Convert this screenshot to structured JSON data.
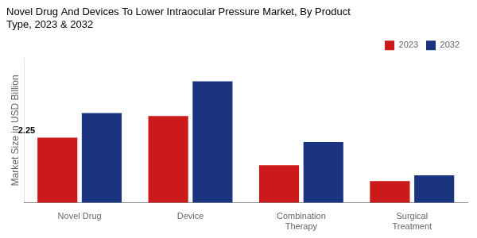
{
  "chart_data": {
    "type": "bar",
    "title": "Novel Drug And Devices To Lower Intraocular Pressure Market, By Product\nType, 2023 & 2032",
    "ylabel": "Market Size in USD Billion",
    "categories": [
      "Novel Drug",
      "Device",
      "Combination\nTherapy",
      "Surgical\nTreatment"
    ],
    "series": [
      {
        "name": "2023",
        "color": "#cc1a1a",
        "values": [
          2.25,
          3.0,
          1.3,
          0.75
        ]
      },
      {
        "name": "2032",
        "color": "#1a3480",
        "values": [
          3.1,
          4.2,
          2.1,
          0.95
        ]
      }
    ],
    "ylim": [
      0,
      5.0
    ],
    "grid": false,
    "legend": "top-right",
    "tick_labels": "x",
    "annotations": [
      {
        "text": "2.25",
        "category": "Novel Drug",
        "series": "2023"
      }
    ]
  }
}
